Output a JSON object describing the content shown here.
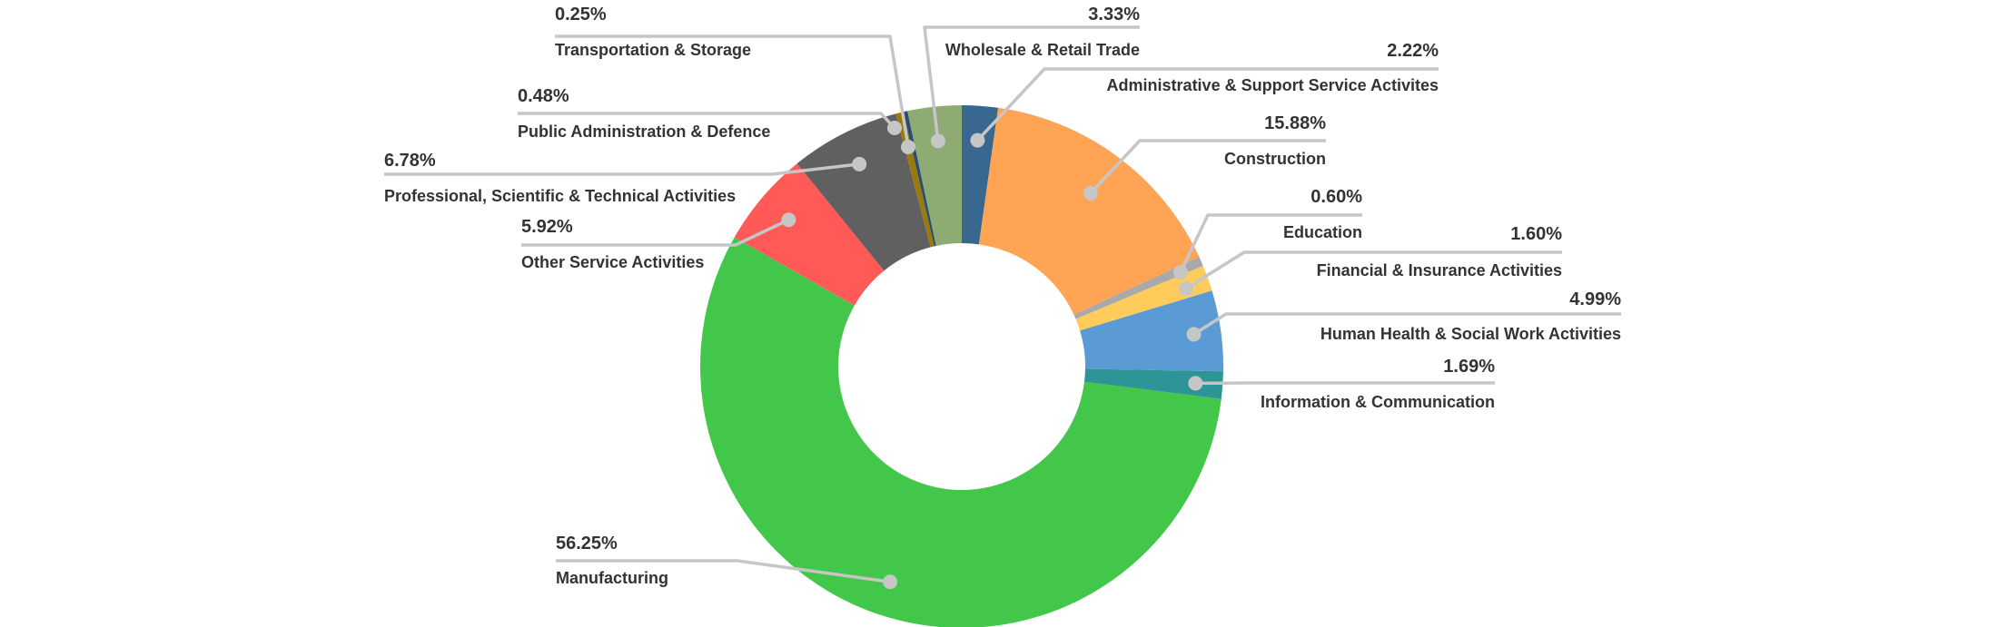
{
  "chart_data": {
    "type": "pie",
    "variant": "donut",
    "legend": "none",
    "slices": [
      {
        "label": "Administrative & Support Service Activites",
        "value": 2.22,
        "display": "2.22%",
        "color": "#386890"
      },
      {
        "label": "Construction",
        "value": 15.88,
        "display": "15.88%",
        "color": "#ffa354"
      },
      {
        "label": "Education",
        "value": 0.6,
        "display": "0.60%",
        "color": "#a9a9a9"
      },
      {
        "label": "Financial & Insurance Activities",
        "value": 1.6,
        "display": "1.60%",
        "color": "#ffcb5a"
      },
      {
        "label": "Human Health & Social Work Activities",
        "value": 4.99,
        "display": "4.99%",
        "color": "#5b9bd5"
      },
      {
        "label": "Information & Communication",
        "value": 1.69,
        "display": "1.69%",
        "color": "#2e9596"
      },
      {
        "label": "Manufacturing",
        "value": 56.25,
        "display": "56.25%",
        "color": "#43c74a"
      },
      {
        "label": "Other Service Activities",
        "value": 5.92,
        "display": "5.92%",
        "color": "#ff5a58"
      },
      {
        "label": "Professional, Scientific & Technical Activities",
        "value": 6.78,
        "display": "6.78%",
        "color": "#606060"
      },
      {
        "label": "Public Administration & Defence",
        "value": 0.48,
        "display": "0.48%",
        "color": "#9b7a0c"
      },
      {
        "label": "Transportation & Storage",
        "value": 0.25,
        "display": "0.25%",
        "color": "#2a4f70"
      },
      {
        "label": "Wholesale & Retail Trade",
        "value": 3.33,
        "display": "3.33%",
        "color": "#8fab74"
      }
    ]
  }
}
